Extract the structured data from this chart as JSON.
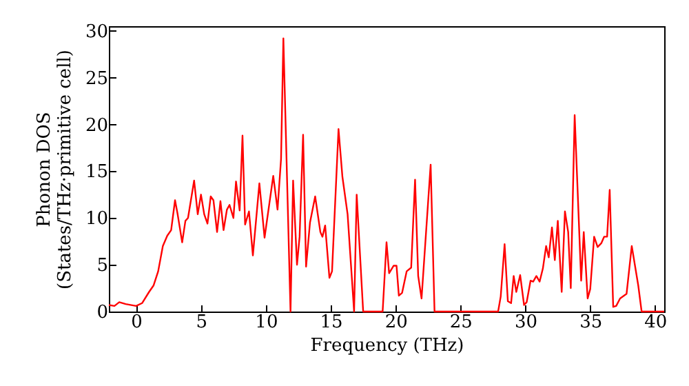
{
  "chart_data": {
    "type": "line",
    "xlabel": "Frequency (THz)",
    "ylabel": "Phonon DOS\n(States/THz·primitive cell)",
    "xlim": [
      -2.1,
      40.7
    ],
    "ylim": [
      0,
      30.5
    ],
    "xticks": [
      0,
      5,
      10,
      15,
      20,
      25,
      30,
      35,
      40
    ],
    "yticks": [
      0,
      5,
      10,
      15,
      20,
      25,
      30
    ],
    "grid": false,
    "series": [
      {
        "color": "#ff0000",
        "x": [
          -2.1,
          -1.67,
          -1.3,
          -0.8,
          0,
          0.46,
          1.0,
          1.35,
          1.7,
          2.06,
          2.4,
          2.7,
          3.0,
          3.2,
          3.55,
          3.8,
          4.0,
          4.47,
          4.75,
          5.0,
          5.25,
          5.5,
          5.75,
          5.96,
          6.24,
          6.5,
          6.74,
          7.0,
          7.2,
          7.5,
          7.7,
          7.98,
          8.2,
          8.4,
          8.7,
          9.0,
          9.5,
          9.9,
          10.57,
          10.9,
          11.17,
          11.35,
          11.9,
          12.1,
          12.4,
          12.6,
          12.87,
          13.1,
          13.4,
          13.8,
          14.2,
          14.36,
          14.57,
          14.9,
          15.1,
          15.6,
          15.9,
          16.3,
          16.8,
          17.0,
          17.5,
          19.0,
          19.3,
          19.5,
          19.85,
          20.07,
          20.25,
          20.5,
          20.85,
          21.2,
          21.5,
          21.74,
          22.0,
          22.7,
          23.0,
          27.9,
          28.1,
          28.4,
          28.65,
          28.9,
          29.1,
          29.3,
          29.6,
          29.9,
          30.1,
          30.4,
          30.6,
          30.85,
          31.1,
          31.35,
          31.6,
          31.8,
          32.05,
          32.27,
          32.5,
          32.8,
          33.05,
          33.3,
          33.5,
          33.8,
          34.3,
          34.5,
          34.8,
          35.0,
          35.3,
          35.57,
          35.85,
          36.07,
          36.3,
          36.5,
          36.77,
          37.0,
          37.3,
          37.8,
          38.2,
          38.7,
          38.96,
          40.7
        ],
        "values": [
          0.7,
          0.6,
          1.0,
          0.8,
          0.6,
          0.9,
          2.1,
          2.8,
          4.3,
          7.0,
          8.1,
          8.7,
          11.9,
          10.4,
          7.4,
          9.7,
          10.0,
          14.0,
          10.4,
          12.5,
          10.4,
          9.4,
          12.3,
          11.9,
          8.5,
          11.8,
          8.7,
          10.9,
          11.4,
          10.0,
          13.9,
          10.8,
          18.8,
          9.3,
          10.7,
          6.0,
          13.7,
          7.9,
          14.5,
          10.9,
          16.3,
          29.2,
          0,
          14.0,
          5.0,
          8.0,
          18.9,
          4.8,
          9.5,
          12.3,
          8.5,
          8.0,
          9.2,
          3.6,
          4.3,
          19.5,
          14.4,
          10.4,
          0,
          12.5,
          0,
          0,
          7.4,
          4.1,
          4.9,
          4.9,
          1.7,
          2.0,
          4.3,
          4.7,
          14.1,
          3.8,
          1.4,
          15.7,
          0,
          0,
          1.6,
          7.2,
          1.1,
          0.9,
          3.8,
          2.1,
          3.9,
          0.7,
          1.0,
          3.3,
          3.2,
          3.8,
          3.2,
          4.6,
          7.0,
          5.8,
          9.0,
          5.5,
          9.7,
          2.1,
          10.7,
          8.5,
          2.5,
          21.0,
          3.3,
          8.5,
          1.4,
          2.4,
          8.0,
          6.9,
          7.3,
          8.0,
          8.0,
          13.0,
          0.5,
          0.6,
          1.4,
          1.9,
          7.0,
          2.8,
          0,
          0
        ]
      }
    ]
  }
}
